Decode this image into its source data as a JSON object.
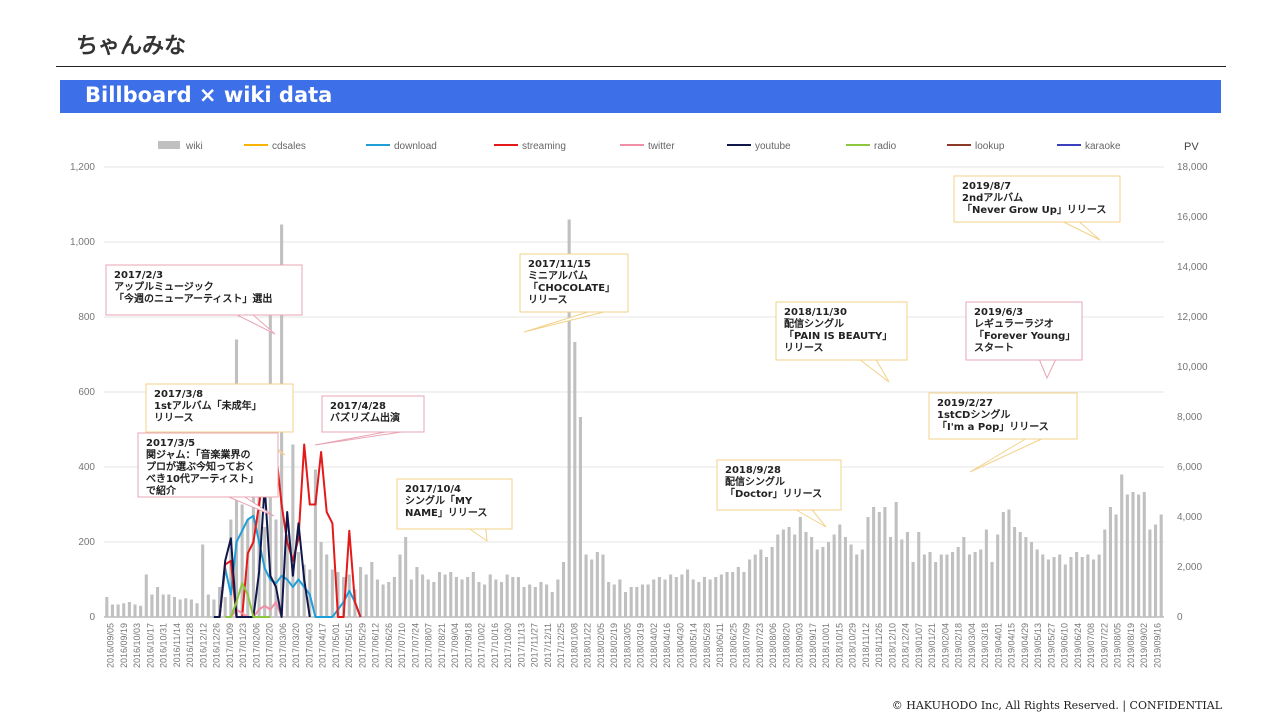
{
  "page": {
    "title": "ちゃんみな",
    "banner": "Billboard × wiki data",
    "footer": "© HAKUHODO Inc, All Rights Reserved. | CONFIDENTIAL"
  },
  "chart_data": {
    "type": "bar+line",
    "legend_position": "top",
    "grid": true,
    "y_left": {
      "range": [
        0,
        1200
      ],
      "ticks": [
        "0",
        "200",
        "400",
        "600",
        "800",
        "1,000",
        "1,200"
      ]
    },
    "y_right": {
      "label": "PV",
      "range": [
        0,
        18000
      ],
      "ticks": [
        "0",
        "2,000",
        "4,000",
        "6,000",
        "8,000",
        "10,000",
        "12,000",
        "14,000",
        "16,000",
        "18,000"
      ]
    },
    "legend": [
      {
        "name": "wiki",
        "color": "#c0c0c0",
        "kind": "bar"
      },
      {
        "name": "cdsales",
        "color": "#f4b400",
        "kind": "line"
      },
      {
        "name": "download",
        "color": "#1e9fd8",
        "kind": "line"
      },
      {
        "name": "streaming",
        "color": "#e41a1a",
        "kind": "line"
      },
      {
        "name": "twitter",
        "color": "#f08fa5",
        "kind": "line"
      },
      {
        "name": "youtube",
        "color": "#10174a",
        "kind": "line"
      },
      {
        "name": "radio",
        "color": "#8dc63f",
        "kind": "line"
      },
      {
        "name": "lookup",
        "color": "#8b3a2a",
        "kind": "line"
      },
      {
        "name": "karaoke",
        "color": "#3a40c0",
        "kind": "line"
      }
    ],
    "x_labels": [
      "2016/09/05",
      "2016/09/19",
      "2016/10/03",
      "2016/10/17",
      "2016/10/31",
      "2016/11/14",
      "2016/11/28",
      "2016/12/12",
      "2016/12/26",
      "2017/01/09",
      "2017/01/23",
      "2017/02/06",
      "2017/02/20",
      "2017/03/06",
      "2017/03/20",
      "2017/04/03",
      "2017/04/17",
      "2017/05/01",
      "2017/05/15",
      "2017/05/29",
      "2017/06/12",
      "2017/06/26",
      "2017/07/10",
      "2017/07/24",
      "2017/08/07",
      "2017/08/21",
      "2017/09/04",
      "2017/09/18",
      "2017/10/02",
      "2017/10/16",
      "2017/10/30",
      "2017/11/13",
      "2017/11/27",
      "2017/12/11",
      "2017/12/25",
      "2018/01/08",
      "2018/01/22",
      "2018/02/05",
      "2018/02/19",
      "2018/03/05",
      "2018/03/19",
      "2018/04/02",
      "2018/04/16",
      "2018/04/30",
      "2018/05/14",
      "2018/05/28",
      "2018/06/11",
      "2018/06/25",
      "2018/07/09",
      "2018/07/23",
      "2018/08/06",
      "2018/08/20",
      "2018/09/03",
      "2018/09/17",
      "2018/10/01",
      "2018/10/15",
      "2018/10/29",
      "2018/11/12",
      "2018/11/26",
      "2018/12/10",
      "2018/12/24",
      "2019/01/07",
      "2019/01/21",
      "2019/02/04",
      "2019/02/18",
      "2019/03/04",
      "2019/03/18",
      "2019/04/01",
      "2019/04/15",
      "2019/04/29",
      "2019/05/13",
      "2019/05/27",
      "2019/06/10",
      "2019/06/24",
      "2019/07/08",
      "2019/07/22",
      "2019/08/05",
      "2019/08/19",
      "2019/09/02",
      "2019/09/16"
    ],
    "wiki_pv": [
      800,
      500,
      500,
      550,
      600,
      500,
      450,
      1700,
      900,
      1200,
      900,
      900,
      800,
      700,
      750,
      700,
      550,
      2900,
      900,
      700,
      1200,
      800,
      3900,
      11100,
      4500,
      3900,
      6400,
      7000,
      3600,
      13100,
      3900,
      15700,
      3300,
      6900,
      2600,
      2100,
      1900,
      5900,
      3000,
      2500,
      1900,
      1800,
      1600,
      1700,
      1100,
      2000,
      1700,
      2200,
      1500,
      1300,
      1400,
      1600,
      2500,
      3200,
      1500,
      2000,
      1700,
      1500,
      1400,
      1800,
      1700,
      1800,
      1600,
      1500,
      1600,
      1800,
      1400,
      1300,
      1700,
      1500,
      1400,
      1700,
      1600,
      1600,
      1200,
      1300,
      1200,
      1400,
      1300,
      1000,
      1500,
      2200,
      15900,
      11000,
      8000,
      2500,
      2300,
      2600,
      2500,
      1400,
      1300,
      1500,
      1000,
      1200,
      1200,
      1300,
      1300,
      1500,
      1600,
      1500,
      1700,
      1600,
      1700,
      1900,
      1500,
      1400,
      1600,
      1500,
      1600,
      1700,
      1800,
      1800,
      2000,
      1800,
      2300,
      2500,
      2700,
      2400,
      2800,
      3300,
      3500,
      3600,
      3300,
      4000,
      3400,
      3200,
      2700,
      2800,
      3000,
      3300,
      3700,
      3200,
      2900,
      2500,
      2700,
      4000,
      4400,
      4200,
      4400,
      3200,
      4600,
      3100,
      3400,
      2200,
      3400,
      2500,
      2600,
      2200,
      2500,
      2500,
      2600,
      2800,
      3200,
      2500,
      2600,
      2700,
      3500,
      2200,
      3300,
      4200,
      4300,
      3600,
      3400,
      3200,
      3000,
      2700,
      2500,
      2300,
      2400,
      2500,
      2100,
      2400,
      2600,
      2400,
      2500,
      2300,
      2500,
      3500,
      4400,
      4100,
      5700,
      4900,
      5000,
      4900,
      5000,
      3500,
      3700,
      4100
    ],
    "series": [
      {
        "name": "cdsales",
        "start": 0,
        "values": []
      },
      {
        "name": "download",
        "start": 19,
        "values": [
          0,
          0,
          130,
          60,
          200,
          230,
          260,
          270,
          200,
          130,
          100,
          90,
          110,
          100,
          80,
          100,
          80,
          60,
          0,
          0,
          0,
          0,
          20,
          40,
          70,
          40,
          0
        ]
      },
      {
        "name": "streaming",
        "start": 19,
        "values": [
          0,
          0,
          140,
          150,
          0,
          0,
          170,
          200,
          300,
          400,
          490,
          440,
          300,
          200,
          150,
          210,
          460,
          300,
          300,
          440,
          280,
          250,
          0,
          0,
          230,
          40,
          0
        ]
      },
      {
        "name": "twitter",
        "start": 21,
        "values": [
          0,
          0,
          20,
          10,
          0,
          0,
          20,
          30,
          20,
          40,
          0
        ]
      },
      {
        "name": "youtube",
        "start": 19,
        "values": [
          0,
          0,
          150,
          210,
          0,
          0,
          0,
          0,
          120,
          350,
          110,
          80,
          0,
          280,
          110,
          250,
          100,
          0
        ]
      },
      {
        "name": "radio",
        "start": 21,
        "values": [
          0,
          0,
          40,
          90,
          60,
          0,
          0,
          0,
          0
        ]
      }
    ],
    "annotations": [
      {
        "text": "2017/2/3\nアップルミュージック\n「今週のニューアーティスト」選出",
        "border": "#e8a4b4"
      },
      {
        "text": "2017/3/8\n1stアルバム「未成年」\nリリース",
        "border": "#f2d28a"
      },
      {
        "text": "2017/3/5\n関ジャム：「音楽業界の\nプロが選ぶ今知っておく\nべき10代アーティスト」\nで紹介",
        "border": "#e8a4b4"
      },
      {
        "text": "2017/4/28\nバズリズム出演",
        "border": "#e8a4b4"
      },
      {
        "text": "2017/10/4\nシングル「MY\nNAME」リリース",
        "border": "#f2d28a"
      },
      {
        "text": "2017/11/15\nミニアルバム\n「CHOCOLATE」\nリリース",
        "border": "#f2d28a"
      },
      {
        "text": "2018/9/28\n配信シングル\n「Doctor」リリース",
        "border": "#f2d28a"
      },
      {
        "text": "2018/11/30\n配信シングル\n「PAIN IS BEAUTY」\nリリース",
        "border": "#f2d28a"
      },
      {
        "text": "2019/2/27\n1stCDシングル\n「I'm a Pop」リリース",
        "border": "#f2d28a"
      },
      {
        "text": "2019/6/3\nレギュラーラジオ\n「Forever Young」\nスタート",
        "border": "#e8a4b4"
      },
      {
        "text": "2019/8/7\n2ndアルバム\n「Never Grow Up」リリース",
        "border": "#f2d28a"
      }
    ]
  }
}
